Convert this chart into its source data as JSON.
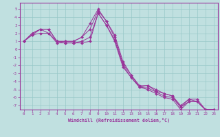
{
  "xlabel": "Windchill (Refroidissement éolien,°C)",
  "ylabel": "",
  "xlim": [
    -0.5,
    23.5
  ],
  "ylim": [
    -7.5,
    5.8
  ],
  "xticks": [
    0,
    1,
    2,
    3,
    4,
    5,
    6,
    7,
    8,
    9,
    10,
    11,
    12,
    13,
    14,
    15,
    16,
    17,
    18,
    19,
    20,
    21,
    22,
    23
  ],
  "yticks": [
    -7,
    -6,
    -5,
    -4,
    -3,
    -2,
    -1,
    0,
    1,
    2,
    3,
    4,
    5
  ],
  "background_color": "#c0e0e0",
  "line_color": "#993399",
  "grid_color": "#98c8c8",
  "series": [
    [
      1.0,
      2.0,
      2.5,
      2.5,
      1.0,
      1.0,
      1.0,
      1.5,
      3.2,
      5.0,
      3.5,
      1.5,
      -1.8,
      -3.2,
      -4.7,
      -4.5,
      -5.2,
      -5.5,
      -5.8,
      -7.0,
      -6.2,
      -6.5,
      -7.5,
      -7.5
    ],
    [
      1.0,
      2.0,
      2.5,
      2.5,
      1.0,
      1.0,
      1.0,
      1.5,
      2.5,
      4.8,
      3.5,
      1.8,
      -1.5,
      -3.2,
      -4.5,
      -4.5,
      -5.0,
      -5.5,
      -5.8,
      -7.2,
      -6.2,
      -6.2,
      -7.5,
      -7.5
    ],
    [
      1.0,
      1.8,
      2.5,
      2.0,
      1.0,
      0.8,
      0.8,
      1.0,
      1.5,
      4.5,
      3.0,
      1.2,
      -2.0,
      -3.5,
      -4.7,
      -4.8,
      -5.3,
      -5.8,
      -6.0,
      -7.2,
      -6.5,
      -6.5,
      -7.5,
      -7.5
    ],
    [
      1.0,
      1.8,
      2.0,
      2.0,
      0.8,
      0.8,
      0.8,
      0.8,
      1.0,
      4.5,
      3.0,
      1.0,
      -2.2,
      -3.5,
      -4.7,
      -5.0,
      -5.5,
      -6.0,
      -6.2,
      -7.5,
      -6.5,
      -6.5,
      -7.5,
      -7.5
    ]
  ]
}
